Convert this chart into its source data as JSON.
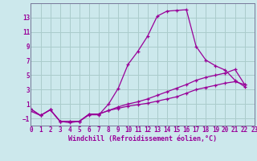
{
  "xlabel": "Windchill (Refroidissement éolien,°C)",
  "background_color": "#cce8ec",
  "grid_color": "#aacccc",
  "line_color": "#990099",
  "x_min": 0,
  "x_max": 23,
  "y_min": -2,
  "y_max": 15,
  "yticks": [
    -1,
    1,
    3,
    5,
    7,
    9,
    11,
    13
  ],
  "xticks": [
    0,
    1,
    2,
    3,
    4,
    5,
    6,
    7,
    8,
    9,
    10,
    11,
    12,
    13,
    14,
    15,
    16,
    17,
    18,
    19,
    20,
    21,
    22,
    23
  ],
  "line1_x": [
    0,
    1,
    2,
    3,
    4,
    5,
    6,
    7,
    8,
    9,
    10,
    11,
    12,
    13,
    14,
    15,
    16,
    17,
    18,
    19,
    20,
    21,
    22
  ],
  "line1_y": [
    0.3,
    -0.6,
    0.2,
    -1.4,
    -1.6,
    -1.4,
    -0.5,
    -0.5,
    1.0,
    3.2,
    6.5,
    8.3,
    10.4,
    13.2,
    13.9,
    14.0,
    14.1,
    9.0,
    7.1,
    6.3,
    5.7,
    4.3,
    3.4
  ],
  "line2_x": [
    0,
    1,
    2,
    3,
    4,
    5,
    6,
    7,
    8,
    9,
    10,
    11,
    12,
    13,
    14,
    15,
    16,
    17,
    18,
    19,
    20,
    21,
    22
  ],
  "line2_y": [
    0.3,
    -0.6,
    0.2,
    -1.4,
    -1.4,
    -1.4,
    -0.4,
    -0.4,
    0.1,
    0.6,
    1.0,
    1.3,
    1.7,
    2.2,
    2.7,
    3.2,
    3.7,
    4.3,
    4.7,
    5.0,
    5.3,
    5.8,
    3.7
  ],
  "line3_x": [
    0,
    1,
    2,
    3,
    4,
    5,
    6,
    7,
    8,
    9,
    10,
    11,
    12,
    13,
    14,
    15,
    16,
    17,
    18,
    19,
    20,
    21,
    22
  ],
  "line3_y": [
    0.0,
    -0.6,
    0.2,
    -1.4,
    -1.4,
    -1.4,
    -0.4,
    -0.4,
    0.1,
    0.4,
    0.7,
    0.9,
    1.1,
    1.4,
    1.7,
    2.0,
    2.5,
    3.0,
    3.3,
    3.6,
    3.9,
    4.1,
    3.7
  ]
}
